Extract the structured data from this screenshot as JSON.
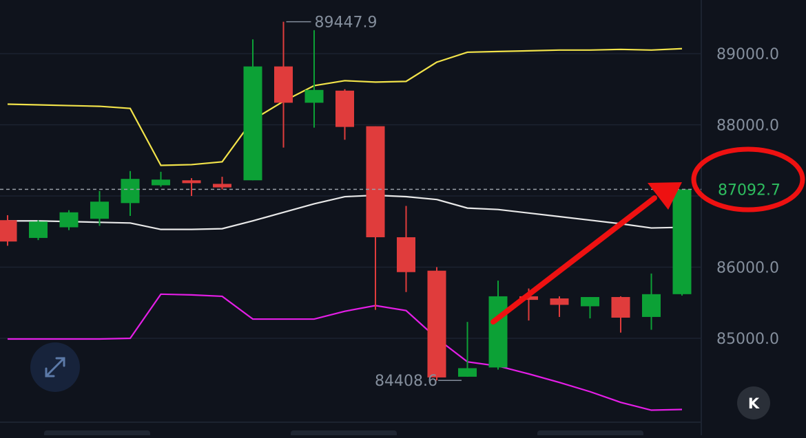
{
  "chart_data": {
    "type": "candlestick",
    "y_axis_ticks": [
      "89000.0",
      "88000.0",
      "86000.0",
      "85000.0"
    ],
    "y_tick_values": [
      89000,
      88000,
      86000,
      85000
    ],
    "current_price_label": "87092.7",
    "current_price": 87092.7,
    "high_label": "89447.9",
    "high_value": 89447.9,
    "low_label": "84408.6",
    "low_value": 84408.6,
    "colors": {
      "up": "#0ca136",
      "down": "#e03c3c",
      "upper_band": "#f2e34a",
      "middle_band": "#e8e8e8",
      "lower_band": "#e41ee6",
      "annotation": "#ee1111",
      "background": "#0f131c",
      "grid": "#1c2330"
    },
    "candles": [
      {
        "o": 86660,
        "h": 86730,
        "l": 86300,
        "c": 86360
      },
      {
        "o": 86410,
        "h": 86660,
        "l": 86380,
        "c": 86640
      },
      {
        "o": 86560,
        "h": 86800,
        "l": 86520,
        "c": 86770
      },
      {
        "o": 86680,
        "h": 87070,
        "l": 86580,
        "c": 86920
      },
      {
        "o": 86900,
        "h": 87350,
        "l": 86720,
        "c": 87240
      },
      {
        "o": 87150,
        "h": 87340,
        "l": 87130,
        "c": 87230
      },
      {
        "o": 87220,
        "h": 87250,
        "l": 87000,
        "c": 87180
      },
      {
        "o": 87170,
        "h": 87270,
        "l": 87090,
        "c": 87120
      },
      {
        "o": 87220,
        "h": 89200,
        "l": 87220,
        "c": 88820
      },
      {
        "o": 88820,
        "h": 89447.9,
        "l": 87680,
        "c": 88310
      },
      {
        "o": 88310,
        "h": 89330,
        "l": 87960,
        "c": 88490
      },
      {
        "o": 88480,
        "h": 88500,
        "l": 87790,
        "c": 87970
      },
      {
        "o": 87980,
        "h": 87980,
        "l": 85400,
        "c": 86420
      },
      {
        "o": 86420,
        "h": 86860,
        "l": 85650,
        "c": 85930
      },
      {
        "o": 85950,
        "h": 86000,
        "l": 84408.6,
        "c": 84450
      },
      {
        "o": 84460,
        "h": 85230,
        "l": 84460,
        "c": 84580
      },
      {
        "o": 84590,
        "h": 85810,
        "l": 84560,
        "c": 85590
      },
      {
        "o": 85590,
        "h": 85700,
        "l": 85250,
        "c": 85540
      },
      {
        "o": 85560,
        "h": 85590,
        "l": 85300,
        "c": 85470
      },
      {
        "o": 85450,
        "h": 85580,
        "l": 85280,
        "c": 85580
      },
      {
        "o": 85580,
        "h": 85590,
        "l": 85080,
        "c": 85290
      },
      {
        "o": 85300,
        "h": 85910,
        "l": 85120,
        "c": 85620
      },
      {
        "o": 85620,
        "h": 87092.7,
        "l": 85600,
        "c": 87092.7
      }
    ],
    "upper_band": [
      88290,
      88280,
      88270,
      88260,
      88230,
      87430,
      87440,
      87480,
      88070,
      88330,
      88550,
      88620,
      88600,
      88610,
      88880,
      89020,
      89030,
      89040,
      89050,
      89050,
      89060,
      89050,
      89070
    ],
    "middle_band": [
      86650,
      86650,
      86640,
      86630,
      86620,
      86530,
      86530,
      86540,
      86650,
      86770,
      86890,
      86990,
      87010,
      86990,
      86950,
      86830,
      86810,
      86760,
      86710,
      86660,
      86610,
      86550,
      86560
    ],
    "lower_band": [
      84990,
      84990,
      84990,
      84990,
      85000,
      85620,
      85610,
      85590,
      85270,
      85270,
      85270,
      85380,
      85460,
      85390,
      85000,
      84670,
      84610,
      84500,
      84380,
      84250,
      84100,
      83990,
      84000
    ]
  },
  "icons": {
    "expand": "expand-arrows-icon",
    "back": "collapse-left-icon"
  },
  "back_button_label": "K"
}
